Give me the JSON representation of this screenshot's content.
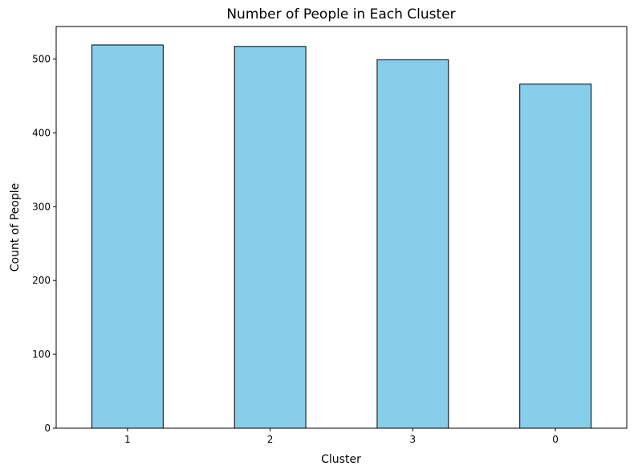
{
  "chart_data": {
    "type": "bar",
    "title": "Number of People in Each Cluster",
    "xlabel": "Cluster",
    "ylabel": "Count of People",
    "categories": [
      "1",
      "2",
      "3",
      "0"
    ],
    "values": [
      519,
      517,
      499,
      466
    ],
    "ylim": [
      0,
      544
    ],
    "yticks": [
      0,
      100,
      200,
      300,
      400,
      500
    ],
    "bar_color": "#87ceeb",
    "edge_color": "#000000",
    "grid": false,
    "legend": "none"
  }
}
